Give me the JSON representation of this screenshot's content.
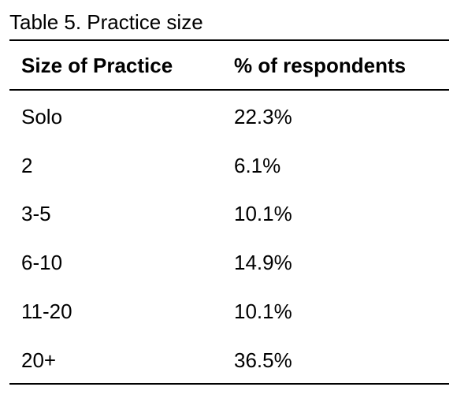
{
  "caption": "Table 5. Practice size",
  "table": {
    "headers": [
      "Size of Practice",
      "% of respondents"
    ],
    "rows": [
      [
        "Solo",
        "22.3%"
      ],
      [
        "2",
        "6.1%"
      ],
      [
        "3-5",
        "10.1%"
      ],
      [
        "6-10",
        "14.9%"
      ],
      [
        "11-20",
        "10.1%"
      ],
      [
        "20+",
        "36.5%"
      ]
    ]
  }
}
